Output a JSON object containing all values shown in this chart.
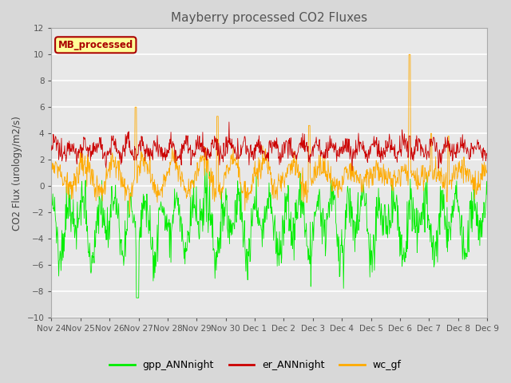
{
  "title": "Mayberry processed CO2 Fluxes",
  "ylabel": "CO2 Flux (urology/m2/s)",
  "ylim": [
    -10,
    12
  ],
  "yticks": [
    -10,
    -8,
    -6,
    -4,
    -2,
    0,
    2,
    4,
    6,
    8,
    10,
    12
  ],
  "legend_label": "MB_processed",
  "legend_box_color": "#ffff99",
  "legend_box_edge": "#aa0000",
  "series": [
    "gpp_ANNnight",
    "er_ANNnight",
    "wc_gf"
  ],
  "colors": {
    "gpp_ANNnight": "#00ee00",
    "er_ANNnight": "#cc0000",
    "wc_gf": "#ffaa00"
  },
  "n_points": 960,
  "xtick_labels": [
    "Nov 24",
    "Nov 25",
    "Nov 26",
    "Nov 27",
    "Nov 28",
    "Nov 29",
    "Nov 30",
    "Dec 1",
    "Dec 2",
    "Dec 3",
    "Dec 4",
    "Dec 5",
    "Dec 6",
    "Dec 7",
    "Dec 8",
    "Dec 9"
  ],
  "background_color": "#d8d8d8",
  "plot_bg_color": "#e8e8e8",
  "grid_color": "#ffffff",
  "title_color": "#555555",
  "linewidth": 0.6,
  "seed": 12345
}
